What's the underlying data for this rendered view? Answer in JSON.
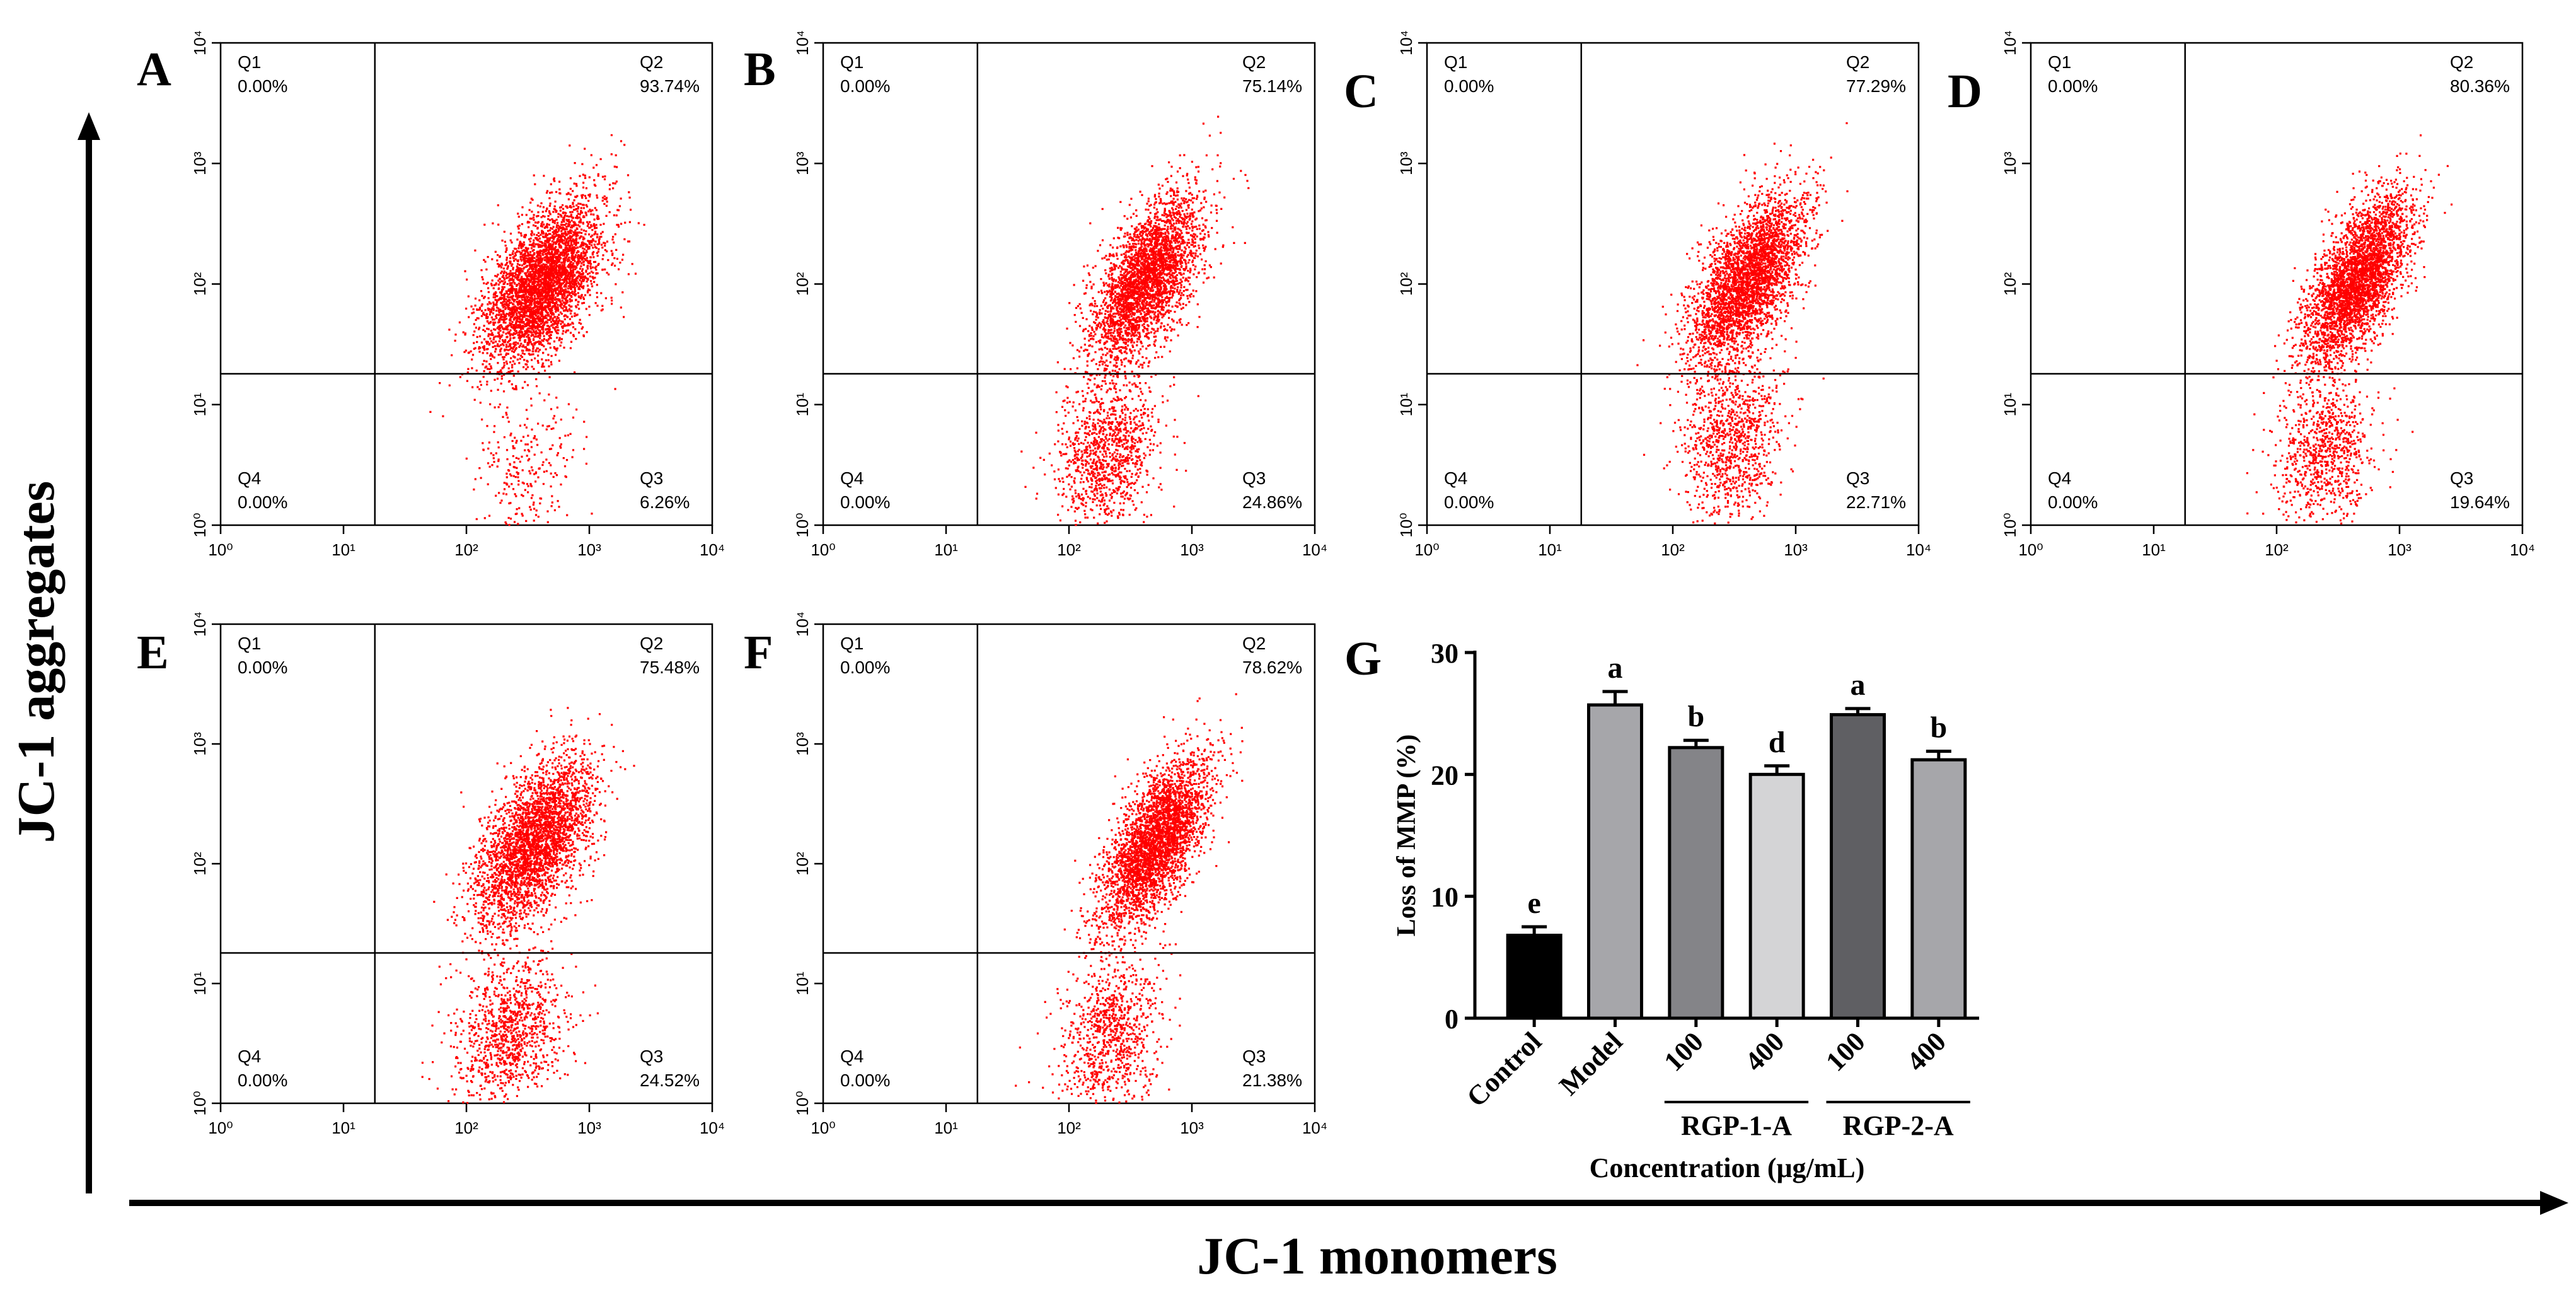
{
  "figure": {
    "y_axis_title": "JC-1 aggregates",
    "x_axis_title": "JC-1 monomers"
  },
  "chart_data": [
    {
      "type": "scatter",
      "panel": "A",
      "x_scale": "log",
      "y_scale": "log",
      "xlim": [
        1,
        10000
      ],
      "ylim": [
        1,
        10000
      ],
      "x_ticks": [
        "10⁰",
        "10¹",
        "10²",
        "10³",
        "10⁴"
      ],
      "y_ticks": [
        "10⁰",
        "10¹",
        "10²",
        "10³",
        "10⁴"
      ],
      "quadrants": [
        {
          "name": "Q1",
          "value": "0.00%"
        },
        {
          "name": "Q2",
          "value": "93.74%"
        },
        {
          "name": "Q3",
          "value": "6.26%"
        },
        {
          "name": "Q4",
          "value": "0.00%"
        }
      ],
      "gate": {
        "x": 18,
        "y": 18
      },
      "populations": [
        {
          "center_x": 400,
          "center_y": 100,
          "spread_x": 0.24,
          "spread_y": 0.34,
          "rho": 0.55,
          "weight": 0.94
        },
        {
          "center_x": 300,
          "center_y": 3,
          "spread_x": 0.22,
          "spread_y": 0.3,
          "rho": 0.2,
          "weight": 0.06
        }
      ]
    },
    {
      "type": "scatter",
      "panel": "B",
      "x_scale": "log",
      "y_scale": "log",
      "xlim": [
        1,
        10000
      ],
      "ylim": [
        1,
        10000
      ],
      "x_ticks": [
        "10⁰",
        "10¹",
        "10²",
        "10³",
        "10⁴"
      ],
      "y_ticks": [
        "10⁰",
        "10¹",
        "10²",
        "10³",
        "10⁴"
      ],
      "quadrants": [
        {
          "name": "Q1",
          "value": "0.00%"
        },
        {
          "name": "Q2",
          "value": "75.14%"
        },
        {
          "name": "Q3",
          "value": "24.86%"
        },
        {
          "name": "Q4",
          "value": "0.00%"
        }
      ],
      "gate": {
        "x": 18,
        "y": 18
      },
      "populations": [
        {
          "center_x": 420,
          "center_y": 110,
          "spread_x": 0.22,
          "spread_y": 0.35,
          "rho": 0.6,
          "weight": 0.75
        },
        {
          "center_x": 200,
          "center_y": 4,
          "spread_x": 0.2,
          "spread_y": 0.3,
          "rho": 0.2,
          "weight": 0.25
        }
      ]
    },
    {
      "type": "scatter",
      "panel": "C",
      "x_scale": "log",
      "y_scale": "log",
      "xlim": [
        1,
        10000
      ],
      "ylim": [
        1,
        10000
      ],
      "x_ticks": [
        "10⁰",
        "10¹",
        "10²",
        "10³",
        "10⁴"
      ],
      "y_ticks": [
        "10⁰",
        "10¹",
        "10²",
        "10³",
        "10⁴"
      ],
      "quadrants": [
        {
          "name": "Q1",
          "value": "0.00%"
        },
        {
          "name": "Q2",
          "value": "77.29%"
        },
        {
          "name": "Q3",
          "value": "22.71%"
        },
        {
          "name": "Q4",
          "value": "0.00%"
        }
      ],
      "gate": {
        "x": 18,
        "y": 18
      },
      "populations": [
        {
          "center_x": 400,
          "center_y": 110,
          "spread_x": 0.23,
          "spread_y": 0.35,
          "rho": 0.6,
          "weight": 0.77
        },
        {
          "center_x": 300,
          "center_y": 5,
          "spread_x": 0.2,
          "spread_y": 0.32,
          "rho": 0.2,
          "weight": 0.23
        }
      ]
    },
    {
      "type": "scatter",
      "panel": "D",
      "x_scale": "log",
      "y_scale": "log",
      "xlim": [
        1,
        10000
      ],
      "ylim": [
        1,
        10000
      ],
      "x_ticks": [
        "10⁰",
        "10¹",
        "10²",
        "10³",
        "10⁴"
      ],
      "y_ticks": [
        "10⁰",
        "10¹",
        "10²",
        "10³",
        "10⁴"
      ],
      "quadrants": [
        {
          "name": "Q1",
          "value": "0.00%"
        },
        {
          "name": "Q2",
          "value": "80.36%"
        },
        {
          "name": "Q3",
          "value": "19.64%"
        },
        {
          "name": "Q4",
          "value": "0.00%"
        }
      ],
      "gate": {
        "x": 18,
        "y": 18
      },
      "populations": [
        {
          "center_x": 450,
          "center_y": 110,
          "spread_x": 0.22,
          "spread_y": 0.36,
          "rho": 0.65,
          "weight": 0.8
        },
        {
          "center_x": 250,
          "center_y": 4,
          "spread_x": 0.2,
          "spread_y": 0.3,
          "rho": 0.2,
          "weight": 0.2
        }
      ]
    },
    {
      "type": "scatter",
      "panel": "E",
      "x_scale": "log",
      "y_scale": "log",
      "xlim": [
        1,
        10000
      ],
      "ylim": [
        1,
        10000
      ],
      "x_ticks": [
        "10⁰",
        "10¹",
        "10²",
        "10³",
        "10⁴"
      ],
      "y_ticks": [
        "10⁰",
        "10¹",
        "10²",
        "10³",
        "10⁴"
      ],
      "quadrants": [
        {
          "name": "Q1",
          "value": "0.00%"
        },
        {
          "name": "Q2",
          "value": "75.48%"
        },
        {
          "name": "Q3",
          "value": "24.52%"
        },
        {
          "name": "Q4",
          "value": "0.00%"
        }
      ],
      "gate": {
        "x": 18,
        "y": 18
      },
      "populations": [
        {
          "center_x": 350,
          "center_y": 150,
          "spread_x": 0.24,
          "spread_y": 0.35,
          "rho": 0.55,
          "weight": 0.75
        },
        {
          "center_x": 220,
          "center_y": 4,
          "spread_x": 0.22,
          "spread_y": 0.3,
          "rho": 0.2,
          "weight": 0.25
        }
      ]
    },
    {
      "type": "scatter",
      "panel": "F",
      "x_scale": "log",
      "y_scale": "log",
      "xlim": [
        1,
        10000
      ],
      "ylim": [
        1,
        10000
      ],
      "x_ticks": [
        "10⁰",
        "10¹",
        "10²",
        "10³",
        "10⁴"
      ],
      "y_ticks": [
        "10⁰",
        "10¹",
        "10²",
        "10³",
        "10⁴"
      ],
      "quadrants": [
        {
          "name": "Q1",
          "value": "0.00%"
        },
        {
          "name": "Q2",
          "value": "78.62%"
        },
        {
          "name": "Q3",
          "value": "21.38%"
        },
        {
          "name": "Q4",
          "value": "0.00%"
        }
      ],
      "gate": {
        "x": 18,
        "y": 18
      },
      "populations": [
        {
          "center_x": 500,
          "center_y": 150,
          "spread_x": 0.22,
          "spread_y": 0.35,
          "rho": 0.65,
          "weight": 0.79
        },
        {
          "center_x": 220,
          "center_y": 4,
          "spread_x": 0.2,
          "spread_y": 0.32,
          "rho": 0.2,
          "weight": 0.21
        }
      ]
    },
    {
      "type": "bar",
      "panel": "G",
      "categories": [
        "Control",
        "Model",
        "100",
        "400",
        "100",
        "400"
      ],
      "groups": [
        {
          "label": "RGP-1-A",
          "categories": [
            "100",
            "400"
          ]
        },
        {
          "label": "RGP-2-A",
          "categories": [
            "100",
            "400"
          ]
        }
      ],
      "values": [
        6.8,
        25.7,
        22.2,
        20.0,
        24.9,
        21.2
      ],
      "errors": [
        0.7,
        1.1,
        0.6,
        0.7,
        0.5,
        0.7
      ],
      "letters": [
        "e",
        "a",
        "b",
        "d",
        "a",
        "b"
      ],
      "colors": [
        "#000000",
        "#a6a6aa",
        "#848488",
        "#d4d4d6",
        "#5f5f63",
        "#a6a6aa"
      ],
      "ylabel": "Loss of MMP (%)",
      "xlabel": "Concentration (μg/mL)",
      "ylim": [
        0,
        30
      ],
      "yticks": [
        0,
        10,
        20,
        30
      ]
    }
  ]
}
